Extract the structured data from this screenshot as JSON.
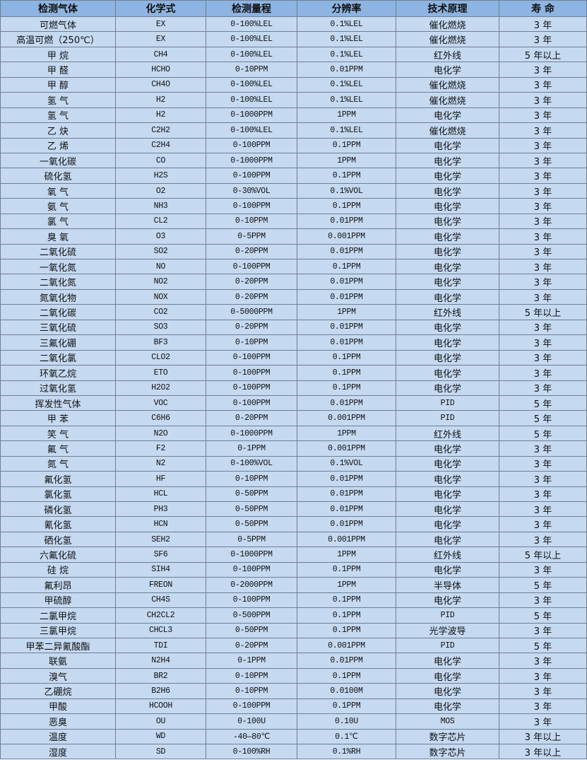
{
  "headers": [
    "检测气体",
    "化学式",
    "检测量程",
    "分辨率",
    "技术原理",
    "寿 命"
  ],
  "rows": [
    [
      "可燃气体",
      "EX",
      "0-100%LEL",
      "0.1%LEL",
      "催化燃烧",
      "3 年"
    ],
    [
      "高温可燃（250℃）",
      "EX",
      "0-100%LEL",
      "0.1%LEL",
      "催化燃烧",
      "3 年"
    ],
    [
      "甲 烷",
      "CH4",
      "0-100%LEL",
      "0.1%LEL",
      "红外线",
      "5 年以上"
    ],
    [
      "甲 醛",
      "HCHO",
      "0-10PPM",
      "0.01PPM",
      "电化学",
      "3 年"
    ],
    [
      "甲 醇",
      "CH4O",
      "0-100%LEL",
      "0.1%LEL",
      "催化燃烧",
      "3 年"
    ],
    [
      "氢 气",
      "H2",
      "0-100%LEL",
      "0.1%LEL",
      "催化燃烧",
      "3 年"
    ],
    [
      "氢 气",
      "H2",
      "0-1000PPM",
      "1PPM",
      "电化学",
      "3 年"
    ],
    [
      "乙 炔",
      "C2H2",
      "0-100%LEL",
      "0.1%LEL",
      "催化燃烧",
      "3 年"
    ],
    [
      "乙 烯",
      "C2H4",
      "0-100PPM",
      "0.1PPM",
      "电化学",
      "3 年"
    ],
    [
      "一氧化碳",
      "CO",
      "0-1000PPM",
      "1PPM",
      "电化学",
      "3 年"
    ],
    [
      "硫化氢",
      "H2S",
      "0-100PPM",
      "0.1PPM",
      "电化学",
      "3 年"
    ],
    [
      "氧 气",
      "O2",
      "0-30%VOL",
      "0.1%VOL",
      "电化学",
      "3 年"
    ],
    [
      "氨 气",
      "NH3",
      "0-100PPM",
      "0.1PPM",
      "电化学",
      "3 年"
    ],
    [
      "氯 气",
      "CL2",
      "0-10PPM",
      "0.01PPM",
      "电化学",
      "3 年"
    ],
    [
      "臭 氧",
      "O3",
      "0-5PPM",
      "0.001PPM",
      "电化学",
      "3 年"
    ],
    [
      "二氧化硫",
      "SO2",
      "0-20PPM",
      "0.01PPM",
      "电化学",
      "3 年"
    ],
    [
      "一氧化氮",
      "NO",
      "0-100PPM",
      "0.1PPM",
      "电化学",
      "3 年"
    ],
    [
      "二氧化氮",
      "NO2",
      "0-20PPM",
      "0.01PPM",
      "电化学",
      "3 年"
    ],
    [
      "氮氧化物",
      "NOX",
      "0-20PPM",
      "0.01PPM",
      "电化学",
      "3 年"
    ],
    [
      "二氧化碳",
      "CO2",
      "0-5000PPM",
      "1PPM",
      "红外线",
      "5 年以上"
    ],
    [
      "三氧化硫",
      "SO3",
      "0-20PPM",
      "0.01PPM",
      "电化学",
      "3 年"
    ],
    [
      "三氟化硼",
      "BF3",
      "0-10PPM",
      "0.01PPM",
      "电化学",
      "3 年"
    ],
    [
      "二氧化氯",
      "CLO2",
      "0-100PPM",
      "0.1PPM",
      "电化学",
      "3 年"
    ],
    [
      "环氧乙烷",
      "ETO",
      "0-100PPM",
      "0.1PPM",
      "电化学",
      "3 年"
    ],
    [
      "过氧化氢",
      "H2O2",
      "0-100PPM",
      "0.1PPM",
      "电化学",
      "3 年"
    ],
    [
      "挥发性气体",
      "VOC",
      "0-100PPM",
      "0.01PPM",
      "PID",
      "5 年"
    ],
    [
      "甲 苯",
      "C6H6",
      "0-20PPM",
      "0.001PPM",
      "PID",
      "5 年"
    ],
    [
      "笑 气",
      "N2O",
      "0-1000PPM",
      "1PPM",
      "红外线",
      "5 年"
    ],
    [
      "氟 气",
      "F2",
      "0-1PPM",
      "0.001PPM",
      "电化学",
      "3 年"
    ],
    [
      "氮 气",
      "N2",
      "0-100%VOL",
      "0.1%VOL",
      "电化学",
      "3 年"
    ],
    [
      "氟化氢",
      "HF",
      "0-10PPM",
      "0.01PPM",
      "电化学",
      "3 年"
    ],
    [
      "氯化氢",
      "HCL",
      "0-50PPM",
      "0.01PPM",
      "电化学",
      "3 年"
    ],
    [
      "磷化氢",
      "PH3",
      "0-50PPM",
      "0.01PPM",
      "电化学",
      "3 年"
    ],
    [
      "氰化氢",
      "HCN",
      "0-50PPM",
      "0.01PPM",
      "电化学",
      "3 年"
    ],
    [
      "硒化氢",
      "SEH2",
      "0-5PPM",
      "0.001PPM",
      "电化学",
      "3 年"
    ],
    [
      "六氟化硫",
      "SF6",
      "0-1000PPM",
      "1PPM",
      "红外线",
      "5 年以上"
    ],
    [
      "硅 烷",
      "SIH4",
      "0-100PPM",
      "0.1PPM",
      "电化学",
      "3 年"
    ],
    [
      "氟利昂",
      "FREON",
      "0-2000PPM",
      "1PPM",
      "半导体",
      "5 年"
    ],
    [
      "甲硫醇",
      "CH4S",
      "0-100PPM",
      "0.1PPM",
      "电化学",
      "3 年"
    ],
    [
      "二氯甲烷",
      "CH2CL2",
      "0-500PPM",
      "0.1PPM",
      "PID",
      "5 年"
    ],
    [
      "三氯甲烷",
      "CHCL3",
      "0-50PPM",
      "0.1PPM",
      "光学波导",
      "3 年"
    ],
    [
      "甲苯二异氰酸酯",
      "TDI",
      "0-20PPM",
      "0.001PPM",
      "PID",
      "5 年"
    ],
    [
      "联氨",
      "N2H4",
      "0-1PPM",
      "0.01PPM",
      "电化学",
      "3 年"
    ],
    [
      "溴气",
      "BR2",
      "0-10PPM",
      "0.1PPM",
      "电化学",
      "3 年"
    ],
    [
      "乙硼烷",
      "B2H6",
      "0-10PPM",
      "0.0100M",
      "电化学",
      "3 年"
    ],
    [
      "甲酸",
      "HCOOH",
      "0-100PPM",
      "0.1PPM",
      "电化学",
      "3 年"
    ],
    [
      "恶臭",
      "OU",
      "0-100U",
      "0.10U",
      "MOS",
      "3 年"
    ],
    [
      "温度",
      "WD",
      "-40—80℃",
      "0.1℃",
      "数字芯片",
      "3 年以上"
    ],
    [
      "湿度",
      "SD",
      "0-100%RH",
      "0.1%RH",
      "数字芯片",
      "3 年以上"
    ]
  ],
  "colors": {
    "header_bg": "#8db4e2",
    "row_bg": "#c5d9f1",
    "border": "#6f7f93"
  }
}
